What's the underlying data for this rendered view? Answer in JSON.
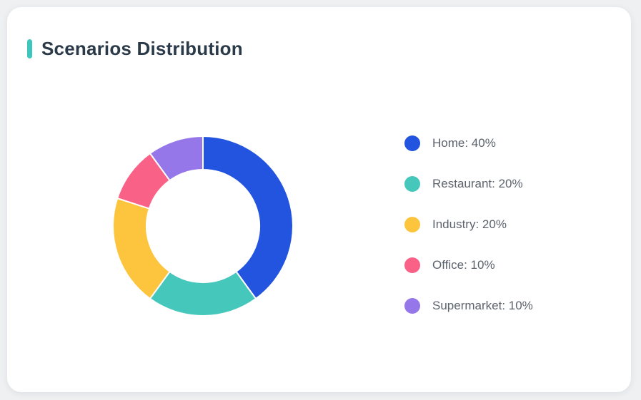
{
  "page": {
    "background_color": "#eef0f2"
  },
  "card": {
    "title": "Scenarios Distribution",
    "accent_color": "#3ec6bd",
    "background_color": "#ffffff",
    "title_color": "#2b3a49"
  },
  "chart_data": {
    "type": "pie",
    "title": "Scenarios Distribution",
    "donut": true,
    "inner_radius_ratio": 0.63,
    "start_angle": "top",
    "direction": "clockwise",
    "legend_position": "right",
    "unit": "%",
    "segment_border_color": "#ffffff",
    "series": [
      {
        "name": "Home",
        "value": 40,
        "color": "#2254e0",
        "legend_label": "Home: 40%"
      },
      {
        "name": "Restaurant",
        "value": 20,
        "color": "#45c7bb",
        "legend_label": "Restaurant: 20%"
      },
      {
        "name": "Industry",
        "value": 20,
        "color": "#fdc43d",
        "legend_label": "Industry: 20%"
      },
      {
        "name": "Office",
        "value": 10,
        "color": "#fa6186",
        "legend_label": "Office: 10%"
      },
      {
        "name": "Supermarket",
        "value": 10,
        "color": "#9577e9",
        "legend_label": "Supermarket: 10%"
      }
    ]
  }
}
